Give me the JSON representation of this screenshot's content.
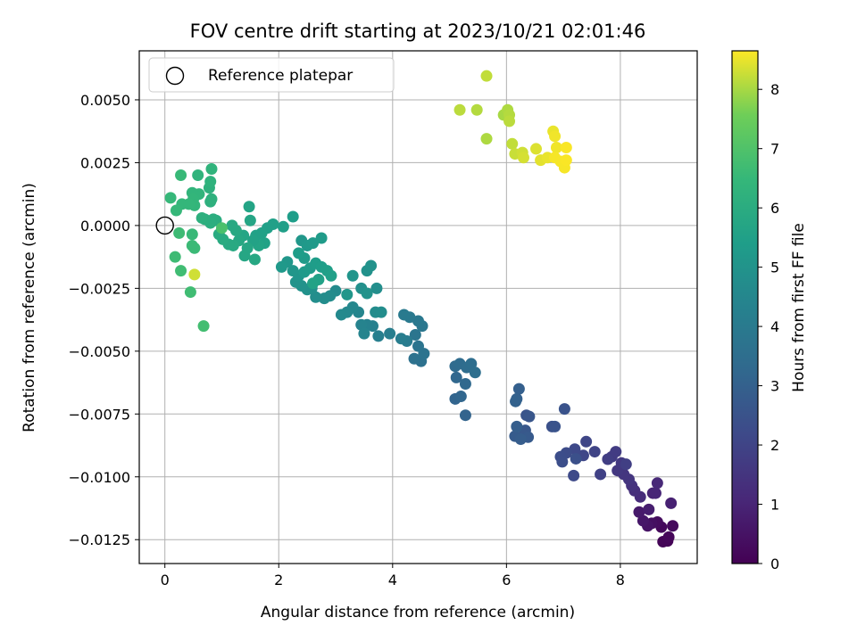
{
  "chart_data": {
    "type": "scatter",
    "title": "FOV centre drift starting at 2023/10/21 02:01:46",
    "xlabel": "Angular distance from reference (arcmin)",
    "ylabel": "Rotation from reference (arcmin)",
    "colorbar_label": "Hours from first FF file",
    "xlim": [
      -0.45,
      9.35
    ],
    "ylim": [
      -0.01345,
      0.00695
    ],
    "xticks": [
      0,
      2,
      4,
      6,
      8
    ],
    "xtick_labels": [
      "0",
      "2",
      "4",
      "6",
      "8"
    ],
    "yticks": [
      0.005,
      0.0025,
      0.0,
      -0.0025,
      -0.005,
      -0.0075,
      -0.01,
      -0.0125
    ],
    "ytick_labels": [
      "0.0050",
      "0.0025",
      "0.0000",
      "−0.0025",
      "−0.0050",
      "−0.0075",
      "−0.0100",
      "−0.0125"
    ],
    "clim": [
      0,
      8.65
    ],
    "cticks": [
      0,
      1,
      2,
      3,
      4,
      5,
      6,
      7,
      8
    ],
    "ctick_labels": [
      "0",
      "1",
      "2",
      "3",
      "4",
      "5",
      "6",
      "7",
      "8"
    ],
    "colormap": "viridis",
    "grid": true,
    "legend": {
      "position": "upper-left",
      "entries": [
        "Reference platepar"
      ]
    },
    "reference_point": {
      "x": 0.0,
      "y": 0.0,
      "marker": "open-circle"
    },
    "points": [
      {
        "x": 8.83,
        "y": -0.01255,
        "c": 0.05
      },
      {
        "x": 8.75,
        "y": -0.01258,
        "c": 0.1
      },
      {
        "x": 8.85,
        "y": -0.0124,
        "c": 0.15
      },
      {
        "x": 8.72,
        "y": -0.012,
        "c": 0.2
      },
      {
        "x": 8.92,
        "y": -0.01195,
        "c": 0.25
      },
      {
        "x": 8.65,
        "y": -0.0118,
        "c": 0.3
      },
      {
        "x": 8.55,
        "y": -0.01185,
        "c": 0.4
      },
      {
        "x": 8.48,
        "y": -0.01195,
        "c": 0.5
      },
      {
        "x": 8.4,
        "y": -0.01175,
        "c": 0.6
      },
      {
        "x": 8.33,
        "y": -0.0114,
        "c": 0.7
      },
      {
        "x": 8.5,
        "y": -0.0113,
        "c": 0.8
      },
      {
        "x": 8.89,
        "y": -0.01105,
        "c": 0.9
      },
      {
        "x": 8.57,
        "y": -0.01065,
        "c": 1.0
      },
      {
        "x": 8.62,
        "y": -0.01065,
        "c": 1.05
      },
      {
        "x": 8.65,
        "y": -0.01025,
        "c": 1.1
      },
      {
        "x": 8.35,
        "y": -0.0108,
        "c": 1.2
      },
      {
        "x": 8.25,
        "y": -0.01055,
        "c": 1.3
      },
      {
        "x": 8.2,
        "y": -0.01035,
        "c": 1.4
      },
      {
        "x": 8.15,
        "y": -0.0101,
        "c": 1.5
      },
      {
        "x": 8.06,
        "y": -0.0099,
        "c": 1.55
      },
      {
        "x": 7.95,
        "y": -0.00975,
        "c": 1.6
      },
      {
        "x": 8.02,
        "y": -0.00945,
        "c": 1.65
      },
      {
        "x": 7.85,
        "y": -0.0092,
        "c": 1.7
      },
      {
        "x": 7.92,
        "y": -0.009,
        "c": 1.75
      },
      {
        "x": 7.78,
        "y": -0.0093,
        "c": 1.8
      },
      {
        "x": 8.1,
        "y": -0.0095,
        "c": 1.85
      },
      {
        "x": 7.65,
        "y": -0.0099,
        "c": 1.9
      },
      {
        "x": 7.55,
        "y": -0.009,
        "c": 2.0
      },
      {
        "x": 7.4,
        "y": -0.0086,
        "c": 2.05
      },
      {
        "x": 7.35,
        "y": -0.00915,
        "c": 2.1
      },
      {
        "x": 7.2,
        "y": -0.0089,
        "c": 2.15
      },
      {
        "x": 7.18,
        "y": -0.00995,
        "c": 2.2
      },
      {
        "x": 7.05,
        "y": -0.00905,
        "c": 2.25
      },
      {
        "x": 6.95,
        "y": -0.0092,
        "c": 2.3
      },
      {
        "x": 6.98,
        "y": -0.0094,
        "c": 2.35
      },
      {
        "x": 7.22,
        "y": -0.00928,
        "c": 2.4
      },
      {
        "x": 7.02,
        "y": -0.0073,
        "c": 2.5
      },
      {
        "x": 6.8,
        "y": -0.008,
        "c": 2.45
      },
      {
        "x": 6.85,
        "y": -0.008,
        "c": 2.5
      },
      {
        "x": 6.35,
        "y": -0.00755,
        "c": 2.55
      },
      {
        "x": 6.4,
        "y": -0.0076,
        "c": 2.6
      },
      {
        "x": 6.33,
        "y": -0.00815,
        "c": 2.65
      },
      {
        "x": 6.3,
        "y": -0.00835,
        "c": 2.7
      },
      {
        "x": 6.38,
        "y": -0.00842,
        "c": 2.75
      },
      {
        "x": 6.15,
        "y": -0.00838,
        "c": 2.8
      },
      {
        "x": 6.25,
        "y": -0.0085,
        "c": 2.85
      },
      {
        "x": 6.18,
        "y": -0.008,
        "c": 2.9
      },
      {
        "x": 6.22,
        "y": -0.0065,
        "c": 2.95
      },
      {
        "x": 6.18,
        "y": -0.0069,
        "c": 3.0
      },
      {
        "x": 6.16,
        "y": -0.007,
        "c": 3.05
      },
      {
        "x": 5.28,
        "y": -0.00755,
        "c": 3.1
      },
      {
        "x": 5.1,
        "y": -0.0069,
        "c": 3.15
      },
      {
        "x": 5.2,
        "y": -0.0068,
        "c": 3.2
      },
      {
        "x": 5.12,
        "y": -0.00605,
        "c": 3.25
      },
      {
        "x": 5.28,
        "y": -0.0063,
        "c": 3.3
      },
      {
        "x": 5.1,
        "y": -0.0056,
        "c": 3.35
      },
      {
        "x": 5.18,
        "y": -0.0055,
        "c": 3.4
      },
      {
        "x": 5.3,
        "y": -0.00565,
        "c": 3.45
      },
      {
        "x": 5.38,
        "y": -0.0055,
        "c": 3.5
      },
      {
        "x": 5.45,
        "y": -0.00585,
        "c": 3.55
      },
      {
        "x": 4.5,
        "y": -0.0054,
        "c": 3.6
      },
      {
        "x": 4.38,
        "y": -0.0053,
        "c": 3.65
      },
      {
        "x": 4.55,
        "y": -0.0051,
        "c": 3.7
      },
      {
        "x": 4.45,
        "y": -0.0048,
        "c": 3.75
      },
      {
        "x": 4.4,
        "y": -0.00435,
        "c": 3.8
      },
      {
        "x": 4.52,
        "y": -0.004,
        "c": 3.85
      },
      {
        "x": 4.45,
        "y": -0.0038,
        "c": 3.9
      },
      {
        "x": 4.3,
        "y": -0.00365,
        "c": 3.95
      },
      {
        "x": 4.2,
        "y": -0.00355,
        "c": 4.0
      },
      {
        "x": 4.25,
        "y": -0.0046,
        "c": 4.05
      },
      {
        "x": 4.15,
        "y": -0.0045,
        "c": 4.1
      },
      {
        "x": 3.95,
        "y": -0.0043,
        "c": 4.15
      },
      {
        "x": 3.75,
        "y": -0.0044,
        "c": 4.2
      },
      {
        "x": 3.65,
        "y": -0.004,
        "c": 4.25
      },
      {
        "x": 3.55,
        "y": -0.00395,
        "c": 4.3
      },
      {
        "x": 3.45,
        "y": -0.00395,
        "c": 4.35
      },
      {
        "x": 3.5,
        "y": -0.0043,
        "c": 4.4
      },
      {
        "x": 3.4,
        "y": -0.00345,
        "c": 4.45
      },
      {
        "x": 3.3,
        "y": -0.00325,
        "c": 4.5
      },
      {
        "x": 3.2,
        "y": -0.00345,
        "c": 4.55
      },
      {
        "x": 3.1,
        "y": -0.00355,
        "c": 4.6
      },
      {
        "x": 3.7,
        "y": -0.00345,
        "c": 4.7
      },
      {
        "x": 3.8,
        "y": -0.00345,
        "c": 4.75
      },
      {
        "x": 3.72,
        "y": -0.0025,
        "c": 4.8
      },
      {
        "x": 3.45,
        "y": -0.0025,
        "c": 4.85
      },
      {
        "x": 3.55,
        "y": -0.0018,
        "c": 4.9
      },
      {
        "x": 3.62,
        "y": -0.0016,
        "c": 4.95
      },
      {
        "x": 3.55,
        "y": -0.0027,
        "c": 5.0
      },
      {
        "x": 3.3,
        "y": -0.002,
        "c": 5.05
      },
      {
        "x": 3.2,
        "y": -0.00275,
        "c": 5.1
      },
      {
        "x": 3.0,
        "y": -0.0026,
        "c": 4.65
      },
      {
        "x": 2.9,
        "y": -0.0028,
        "c": 4.7
      },
      {
        "x": 2.8,
        "y": -0.0029,
        "c": 4.75
      },
      {
        "x": 2.65,
        "y": -0.00285,
        "c": 4.8
      },
      {
        "x": 2.58,
        "y": -0.0025,
        "c": 4.85
      },
      {
        "x": 2.5,
        "y": -0.00255,
        "c": 4.9
      },
      {
        "x": 2.4,
        "y": -0.0024,
        "c": 4.95
      },
      {
        "x": 2.3,
        "y": -0.00225,
        "c": 5.0
      },
      {
        "x": 2.35,
        "y": -0.002,
        "c": 5.05
      },
      {
        "x": 2.25,
        "y": -0.0018,
        "c": 5.1
      },
      {
        "x": 2.15,
        "y": -0.00145,
        "c": 5.15
      },
      {
        "x": 2.05,
        "y": -0.00165,
        "c": 5.2
      },
      {
        "x": 2.45,
        "y": -0.00185,
        "c": 5.25
      },
      {
        "x": 2.55,
        "y": -0.0017,
        "c": 5.3
      },
      {
        "x": 2.65,
        "y": -0.0015,
        "c": 5.35
      },
      {
        "x": 2.75,
        "y": -0.00165,
        "c": 5.4
      },
      {
        "x": 2.85,
        "y": -0.0018,
        "c": 5.45
      },
      {
        "x": 2.92,
        "y": -0.002,
        "c": 5.5
      },
      {
        "x": 2.7,
        "y": -0.00215,
        "c": 5.55
      },
      {
        "x": 2.6,
        "y": -0.0023,
        "c": 5.6
      },
      {
        "x": 2.4,
        "y": -0.0006,
        "c": 5.15
      },
      {
        "x": 2.5,
        "y": -0.0008,
        "c": 5.2
      },
      {
        "x": 2.6,
        "y": -0.0007,
        "c": 5.25
      },
      {
        "x": 2.75,
        "y": -0.0005,
        "c": 5.3
      },
      {
        "x": 2.45,
        "y": -0.0013,
        "c": 5.3
      },
      {
        "x": 2.35,
        "y": -0.0011,
        "c": 5.35
      },
      {
        "x": 2.25,
        "y": 0.00035,
        "c": 5.4
      },
      {
        "x": 2.08,
        "y": -5e-05,
        "c": 5.45
      },
      {
        "x": 1.9,
        "y": 5e-05,
        "c": 5.5
      },
      {
        "x": 1.8,
        "y": -0.0001,
        "c": 5.5
      },
      {
        "x": 1.7,
        "y": -0.0003,
        "c": 5.55
      },
      {
        "x": 1.6,
        "y": -0.0004,
        "c": 5.55
      },
      {
        "x": 1.75,
        "y": -0.0007,
        "c": 5.6
      },
      {
        "x": 1.65,
        "y": -0.0008,
        "c": 5.65
      },
      {
        "x": 1.55,
        "y": -0.0006,
        "c": 5.6
      },
      {
        "x": 1.48,
        "y": 0.00075,
        "c": 5.65
      },
      {
        "x": 1.5,
        "y": 0.0002,
        "c": 5.7
      },
      {
        "x": 1.38,
        "y": -0.0004,
        "c": 5.7
      },
      {
        "x": 1.45,
        "y": -0.0009,
        "c": 5.75
      },
      {
        "x": 1.4,
        "y": -0.0012,
        "c": 5.75
      },
      {
        "x": 1.58,
        "y": -0.00135,
        "c": 5.8
      },
      {
        "x": 1.3,
        "y": -0.0006,
        "c": 5.8
      },
      {
        "x": 1.25,
        "y": -0.0002,
        "c": 5.85
      },
      {
        "x": 1.18,
        "y": 0.0,
        "c": 5.85
      },
      {
        "x": 1.2,
        "y": -0.0008,
        "c": 5.9
      },
      {
        "x": 1.12,
        "y": -0.00075,
        "c": 5.9
      },
      {
        "x": 1.02,
        "y": -0.00055,
        "c": 5.95
      },
      {
        "x": 0.95,
        "y": -0.00035,
        "c": 5.95
      },
      {
        "x": 0.9,
        "y": 0.0002,
        "c": 6.0
      },
      {
        "x": 0.85,
        "y": 0.00025,
        "c": 6.05
      },
      {
        "x": 0.8,
        "y": 0.0001,
        "c": 6.1
      },
      {
        "x": 0.7,
        "y": 0.00025,
        "c": 6.1
      },
      {
        "x": 0.65,
        "y": 0.0003,
        "c": 6.15
      },
      {
        "x": 0.8,
        "y": 0.00095,
        "c": 6.15
      },
      {
        "x": 0.82,
        "y": 0.00105,
        "c": 6.2
      },
      {
        "x": 0.78,
        "y": 0.0015,
        "c": 6.2
      },
      {
        "x": 0.8,
        "y": 0.00175,
        "c": 6.25
      },
      {
        "x": 0.82,
        "y": 0.00225,
        "c": 6.3
      },
      {
        "x": 0.58,
        "y": 0.002,
        "c": 6.3
      },
      {
        "x": 0.6,
        "y": 0.00125,
        "c": 6.35
      },
      {
        "x": 0.48,
        "y": 0.0013,
        "c": 6.35
      },
      {
        "x": 0.5,
        "y": 0.00105,
        "c": 6.4
      },
      {
        "x": 0.52,
        "y": 0.0008,
        "c": 6.4
      },
      {
        "x": 0.42,
        "y": 0.00085,
        "c": 6.45
      },
      {
        "x": 0.3,
        "y": 0.00085,
        "c": 6.45
      },
      {
        "x": 0.2,
        "y": 0.0006,
        "c": 6.5
      },
      {
        "x": 0.1,
        "y": 0.0011,
        "c": 6.5
      },
      {
        "x": 0.28,
        "y": 0.002,
        "c": 6.55
      },
      {
        "x": 0.48,
        "y": -0.00035,
        "c": 6.55
      },
      {
        "x": 0.48,
        "y": -0.0008,
        "c": 6.6
      },
      {
        "x": 0.52,
        "y": -0.0009,
        "c": 6.6
      },
      {
        "x": 0.25,
        "y": -0.0003,
        "c": 6.65
      },
      {
        "x": 0.18,
        "y": -0.00125,
        "c": 6.65
      },
      {
        "x": 0.28,
        "y": -0.0018,
        "c": 6.7
      },
      {
        "x": 0.45,
        "y": -0.00265,
        "c": 6.7
      },
      {
        "x": 0.68,
        "y": -0.004,
        "c": 6.75
      },
      {
        "x": 1.0,
        "y": -0.0001,
        "c": 6.9
      },
      {
        "x": 0.52,
        "y": -0.00195,
        "c": 8.3
      },
      {
        "x": 5.65,
        "y": 0.00595,
        "c": 8.2
      },
      {
        "x": 5.18,
        "y": 0.0046,
        "c": 8.15
      },
      {
        "x": 5.48,
        "y": 0.0046,
        "c": 8.1
      },
      {
        "x": 5.65,
        "y": 0.00345,
        "c": 8.05
      },
      {
        "x": 5.95,
        "y": 0.0044,
        "c": 8.0
      },
      {
        "x": 6.02,
        "y": 0.0046,
        "c": 8.05
      },
      {
        "x": 6.05,
        "y": 0.0044,
        "c": 8.1
      },
      {
        "x": 6.05,
        "y": 0.00415,
        "c": 8.15
      },
      {
        "x": 6.1,
        "y": 0.00325,
        "c": 8.2
      },
      {
        "x": 6.15,
        "y": 0.00285,
        "c": 8.25
      },
      {
        "x": 6.28,
        "y": 0.0029,
        "c": 8.3
      },
      {
        "x": 6.3,
        "y": 0.0027,
        "c": 8.35
      },
      {
        "x": 6.52,
        "y": 0.00305,
        "c": 8.4
      },
      {
        "x": 6.6,
        "y": 0.0026,
        "c": 8.45
      },
      {
        "x": 6.72,
        "y": 0.0027,
        "c": 8.5
      },
      {
        "x": 6.82,
        "y": 0.00375,
        "c": 8.5
      },
      {
        "x": 6.85,
        "y": 0.00355,
        "c": 8.55
      },
      {
        "x": 6.88,
        "y": 0.0031,
        "c": 8.55
      },
      {
        "x": 6.85,
        "y": 0.0027,
        "c": 8.6
      },
      {
        "x": 6.95,
        "y": 0.00255,
        "c": 8.6
      },
      {
        "x": 7.02,
        "y": 0.0023,
        "c": 8.6
      },
      {
        "x": 7.05,
        "y": 0.0031,
        "c": 8.62
      },
      {
        "x": 7.05,
        "y": 0.0026,
        "c": 8.62
      }
    ]
  }
}
